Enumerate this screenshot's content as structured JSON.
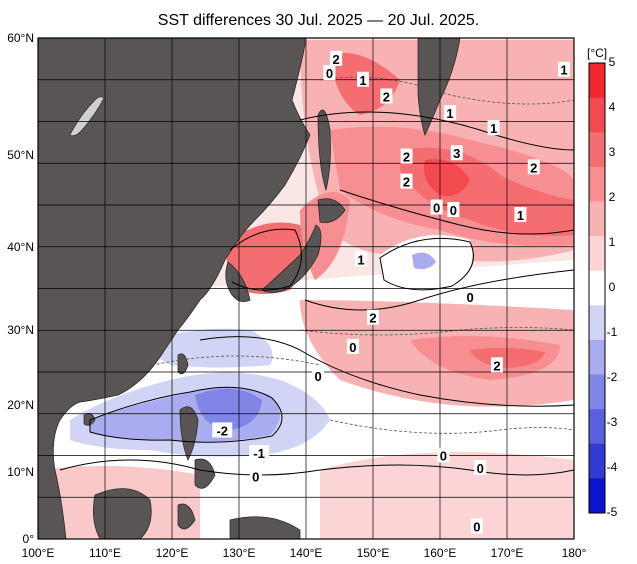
{
  "title": "SST differences 30 Jul. 2025 — 20 Jul. 2025.",
  "colorbar": {
    "unit": "[°C]",
    "ticks": [
      "5",
      "4",
      "3",
      "2",
      "1",
      "0",
      "-1",
      "-2",
      "-3",
      "-4",
      "-5"
    ],
    "colors": [
      "#f0282e",
      "#f24a4f",
      "#f46d70",
      "#f78f92",
      "#f9b2b3",
      "#fcd4d5",
      "#ffffff",
      "#d2d4f6",
      "#a9acee",
      "#8186e6",
      "#5a60de",
      "#323ad6",
      "#0a14cf"
    ]
  },
  "axes": {
    "lon_labels": [
      "100°E",
      "110°E",
      "120°E",
      "130°E",
      "140°E",
      "150°E",
      "160°E",
      "170°E",
      "180°"
    ],
    "lat_labels": [
      "60°N",
      "50°N",
      "40°N",
      "30°N",
      "20°N",
      "10°N",
      "0°"
    ],
    "lon_range": [
      100,
      180
    ],
    "lat_range": [
      0,
      60
    ],
    "grid": true
  },
  "contour_labels": [
    {
      "text": "2",
      "lon": 144.5,
      "lat": 57.5
    },
    {
      "text": "0",
      "lon": 143.5,
      "lat": 55.8
    },
    {
      "text": "1",
      "lon": 148.5,
      "lat": 55.0
    },
    {
      "text": "2",
      "lon": 152.0,
      "lat": 53.0
    },
    {
      "text": "1",
      "lon": 161.5,
      "lat": 51.0
    },
    {
      "text": "1",
      "lon": 168.0,
      "lat": 49.2
    },
    {
      "text": "1",
      "lon": 178.5,
      "lat": 56.2
    },
    {
      "text": "2",
      "lon": 155.0,
      "lat": 45.8
    },
    {
      "text": "3",
      "lon": 162.5,
      "lat": 46.2
    },
    {
      "text": "2",
      "lon": 174.0,
      "lat": 44.5
    },
    {
      "text": "2",
      "lon": 155.0,
      "lat": 42.8
    },
    {
      "text": "0",
      "lon": 159.5,
      "lat": 39.7
    },
    {
      "text": "0",
      "lon": 162.0,
      "lat": 39.4
    },
    {
      "text": "1",
      "lon": 172.0,
      "lat": 38.8
    },
    {
      "text": "1",
      "lon": 148.2,
      "lat": 33.5
    },
    {
      "text": "0",
      "lon": 164.5,
      "lat": 29.0
    },
    {
      "text": "2",
      "lon": 150.0,
      "lat": 26.5
    },
    {
      "text": "0",
      "lon": 147.0,
      "lat": 23.0
    },
    {
      "text": "2",
      "lon": 168.5,
      "lat": 20.8
    },
    {
      "text": "0",
      "lon": 141.8,
      "lat": 19.5
    },
    {
      "text": "-2",
      "lon": 127.5,
      "lat": 13.0
    },
    {
      "text": "-1",
      "lon": 133.0,
      "lat": 10.3
    },
    {
      "text": "0",
      "lon": 132.5,
      "lat": 7.5
    },
    {
      "text": "0",
      "lon": 160.5,
      "lat": 10.0
    },
    {
      "text": "0",
      "lon": 166.0,
      "lat": 8.5
    },
    {
      "text": "0",
      "lon": 165.5,
      "lat": 1.5
    }
  ]
}
